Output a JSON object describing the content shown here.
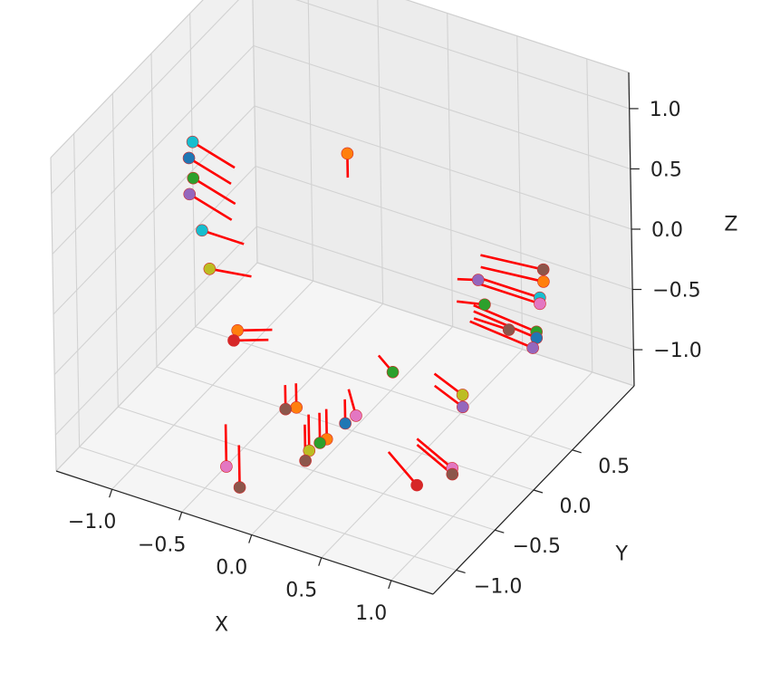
{
  "chart_data": {
    "type": "scatter",
    "projection": "3d",
    "title": "",
    "xlabel": "X",
    "ylabel": "Y",
    "zlabel": "Z",
    "xlim": [
      -1.4,
      1.3
    ],
    "ylim": [
      -1.3,
      1.3
    ],
    "zlim": [
      -1.3,
      1.3
    ],
    "xticks": [
      -1.0,
      -0.5,
      0.0,
      0.5,
      1.0
    ],
    "yticks": [
      -1.0,
      -0.5,
      0.0,
      0.5
    ],
    "zticks": [
      -1.0,
      -0.5,
      0.0,
      0.5,
      1.0
    ],
    "xtick_labels": [
      "−1.0",
      "−0.5",
      "0.0",
      "0.5",
      "1.0"
    ],
    "ytick_labels": [
      "−1.0",
      "−0.5",
      "0.0",
      "0.5"
    ],
    "ztick_labels": [
      "−1.0",
      "−0.5",
      "0.0",
      "0.5",
      "1.0"
    ],
    "grid": true,
    "legend": "none",
    "vector_color": "#ff0000",
    "pane_color": "#f2f2f2",
    "point_colors": [
      "#1f77b4",
      "#ff7f0e",
      "#2ca02c",
      "#d62728",
      "#9467bd",
      "#8c564b",
      "#e377c2",
      "#7f7f7f",
      "#bcbd22",
      "#17becf"
    ],
    "points": [
      {
        "x": 0.0,
        "y": 0.0,
        "z": 1.0,
        "dx": 0.0,
        "dy": 0.0,
        "dz": -0.2,
        "color": "#ff7f0e"
      },
      {
        "x": -1.0,
        "y": -0.2,
        "z": 0.85,
        "dx": 0.3,
        "dy": 0.0,
        "dz": -0.1,
        "color": "#17becf"
      },
      {
        "x": -1.0,
        "y": -0.25,
        "z": 0.75,
        "dx": 0.3,
        "dy": 0.0,
        "dz": -0.1,
        "color": "#1f77b4"
      },
      {
        "x": -1.0,
        "y": -0.2,
        "z": 0.55,
        "dx": 0.3,
        "dy": 0.0,
        "dz": -0.1,
        "color": "#2ca02c"
      },
      {
        "x": -1.0,
        "y": -0.25,
        "z": 0.45,
        "dx": 0.3,
        "dy": 0.0,
        "dz": -0.1,
        "color": "#9467bd"
      },
      {
        "x": -1.0,
        "y": -0.1,
        "z": 0.05,
        "dx": 0.3,
        "dy": 0.0,
        "dz": 0.0,
        "color": "#17becf"
      },
      {
        "x": -0.95,
        "y": -0.1,
        "z": -0.25,
        "dx": 0.3,
        "dy": 0.0,
        "dz": 0.05,
        "color": "#bcbd22"
      },
      {
        "x": -0.7,
        "y": -0.2,
        "z": -0.6,
        "dx": 0.25,
        "dy": 0.0,
        "dz": 0.1,
        "color": "#ff7f0e"
      },
      {
        "x": -0.7,
        "y": -0.25,
        "z": -0.65,
        "dx": 0.25,
        "dy": 0.0,
        "dz": 0.1,
        "color": "#d62728"
      },
      {
        "x": 0.7,
        "y": 0.4,
        "z": -0.05,
        "dx": -0.15,
        "dy": 0.0,
        "dz": -0.05,
        "color": "#9467bd"
      },
      {
        "x": 0.8,
        "y": 0.3,
        "z": -0.15,
        "dx": -0.2,
        "dy": 0.0,
        "dz": -0.05,
        "color": "#2ca02c"
      },
      {
        "x": 1.0,
        "y": 0.25,
        "z": -0.25,
        "dx": -0.25,
        "dy": 0.0,
        "dz": 0.0,
        "color": "#8c564b"
      },
      {
        "x": 1.0,
        "y": 0.7,
        "z": -0.05,
        "dx": -0.45,
        "dy": 0.0,
        "dz": -0.05,
        "color": "#8c564b"
      },
      {
        "x": 1.0,
        "y": 0.7,
        "z": -0.15,
        "dx": -0.45,
        "dy": 0.0,
        "dz": -0.05,
        "color": "#ff7f0e"
      },
      {
        "x": 1.0,
        "y": 0.65,
        "z": -0.25,
        "dx": -0.45,
        "dy": 0.0,
        "dz": 0.0,
        "color": "#17becf"
      },
      {
        "x": 1.0,
        "y": 0.65,
        "z": -0.3,
        "dx": -0.45,
        "dy": 0.0,
        "dz": 0.0,
        "color": "#e377c2"
      },
      {
        "x": 1.0,
        "y": 0.6,
        "z": -0.5,
        "dx": -0.45,
        "dy": 0.0,
        "dz": 0.05,
        "color": "#2ca02c"
      },
      {
        "x": 1.0,
        "y": 0.6,
        "z": -0.55,
        "dx": -0.45,
        "dy": 0.0,
        "dz": 0.05,
        "color": "#1f77b4"
      },
      {
        "x": 1.0,
        "y": 0.55,
        "z": -0.6,
        "dx": -0.45,
        "dy": 0.0,
        "dz": 0.05,
        "color": "#9467bd"
      },
      {
        "x": 0.8,
        "y": 0.0,
        "z": -0.7,
        "dx": -0.2,
        "dy": 0.0,
        "dz": 0.1,
        "color": "#bcbd22"
      },
      {
        "x": 0.8,
        "y": 0.0,
        "z": -0.8,
        "dx": -0.2,
        "dy": 0.0,
        "dz": 0.1,
        "color": "#9467bd"
      },
      {
        "x": 0.3,
        "y": 0.0,
        "z": -0.7,
        "dx": -0.1,
        "dy": 0.0,
        "dz": 0.1,
        "color": "#2ca02c"
      },
      {
        "x": 1.0,
        "y": -0.5,
        "z": -0.9,
        "dx": -0.25,
        "dy": 0.0,
        "dz": 0.15,
        "color": "#e377c2"
      },
      {
        "x": 1.0,
        "y": -0.5,
        "z": -0.95,
        "dx": -0.25,
        "dy": 0.0,
        "dz": 0.15,
        "color": "#8c564b"
      },
      {
        "x": 0.8,
        "y": -0.6,
        "z": -1.05,
        "dx": -0.2,
        "dy": 0.0,
        "dz": 0.2,
        "color": "#d62728"
      },
      {
        "x": 0.2,
        "y": -0.3,
        "z": -0.9,
        "dx": -0.05,
        "dy": 0.0,
        "dz": 0.2,
        "color": "#e377c2"
      },
      {
        "x": 0.15,
        "y": -0.35,
        "z": -0.95,
        "dx": 0.0,
        "dy": 0.0,
        "dz": 0.2,
        "color": "#1f77b4"
      },
      {
        "x": 0.1,
        "y": -0.5,
        "z": -1.0,
        "dx": 0.0,
        "dy": 0.0,
        "dz": 0.25,
        "color": "#ff7f0e"
      },
      {
        "x": 0.05,
        "y": -0.5,
        "z": -1.05,
        "dx": 0.0,
        "dy": 0.0,
        "dz": 0.25,
        "color": "#2ca02c"
      },
      {
        "x": 0.0,
        "y": -0.55,
        "z": -1.1,
        "dx": 0.0,
        "dy": 0.0,
        "dz": 0.3,
        "color": "#bcbd22"
      },
      {
        "x": 0.0,
        "y": -0.6,
        "z": -1.15,
        "dx": 0.0,
        "dy": 0.0,
        "dz": 0.3,
        "color": "#8c564b"
      },
      {
        "x": -0.2,
        "y": -0.35,
        "z": -0.95,
        "dx": 0.0,
        "dy": 0.0,
        "dz": 0.2,
        "color": "#ff7f0e"
      },
      {
        "x": -0.25,
        "y": -0.4,
        "z": -0.95,
        "dx": 0.0,
        "dy": 0.0,
        "dz": 0.2,
        "color": "#8c564b"
      },
      {
        "x": -0.4,
        "y": -0.9,
        "z": -1.15,
        "dx": 0.0,
        "dy": 0.0,
        "dz": 0.35,
        "color": "#e377c2"
      },
      {
        "x": -0.25,
        "y": -1.0,
        "z": -1.2,
        "dx": 0.0,
        "dy": 0.0,
        "dz": 0.35,
        "color": "#8c564b"
      }
    ]
  }
}
